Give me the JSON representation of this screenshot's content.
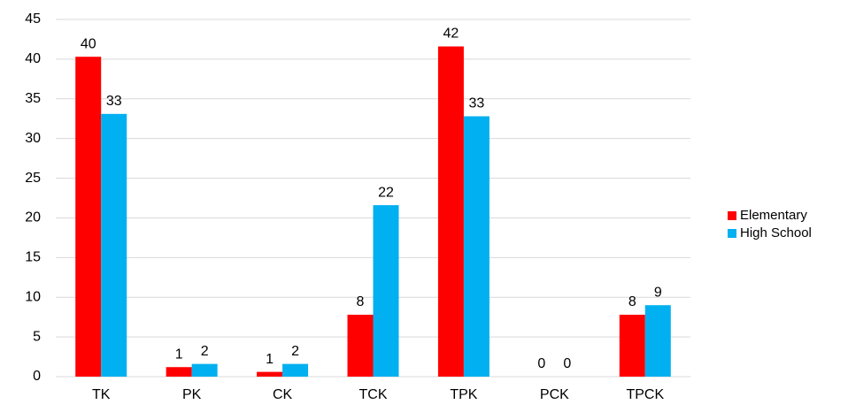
{
  "chart_data": {
    "type": "bar",
    "categories": [
      "TK",
      "PK",
      "CK",
      "TCK",
      "TPK",
      "PCK",
      "TPCK"
    ],
    "series": [
      {
        "name": "Elementary",
        "color": "#ff0000",
        "values": [
          40.3,
          1.2,
          0.6,
          7.8,
          41.6,
          0,
          7.8
        ],
        "value_labels": [
          "40",
          "1",
          "1",
          "8",
          "42",
          "0",
          "8"
        ]
      },
      {
        "name": "High School",
        "color": "#00b0f0",
        "values": [
          33.1,
          1.6,
          1.6,
          21.6,
          32.8,
          0,
          9.0
        ],
        "value_labels": [
          "33",
          "2",
          "2",
          "22",
          "33",
          "0",
          "9"
        ]
      }
    ],
    "ylim": [
      0,
      45
    ],
    "yticks": [
      0,
      5,
      10,
      15,
      20,
      25,
      30,
      35,
      40,
      45
    ],
    "grid": true,
    "legend": "right"
  }
}
